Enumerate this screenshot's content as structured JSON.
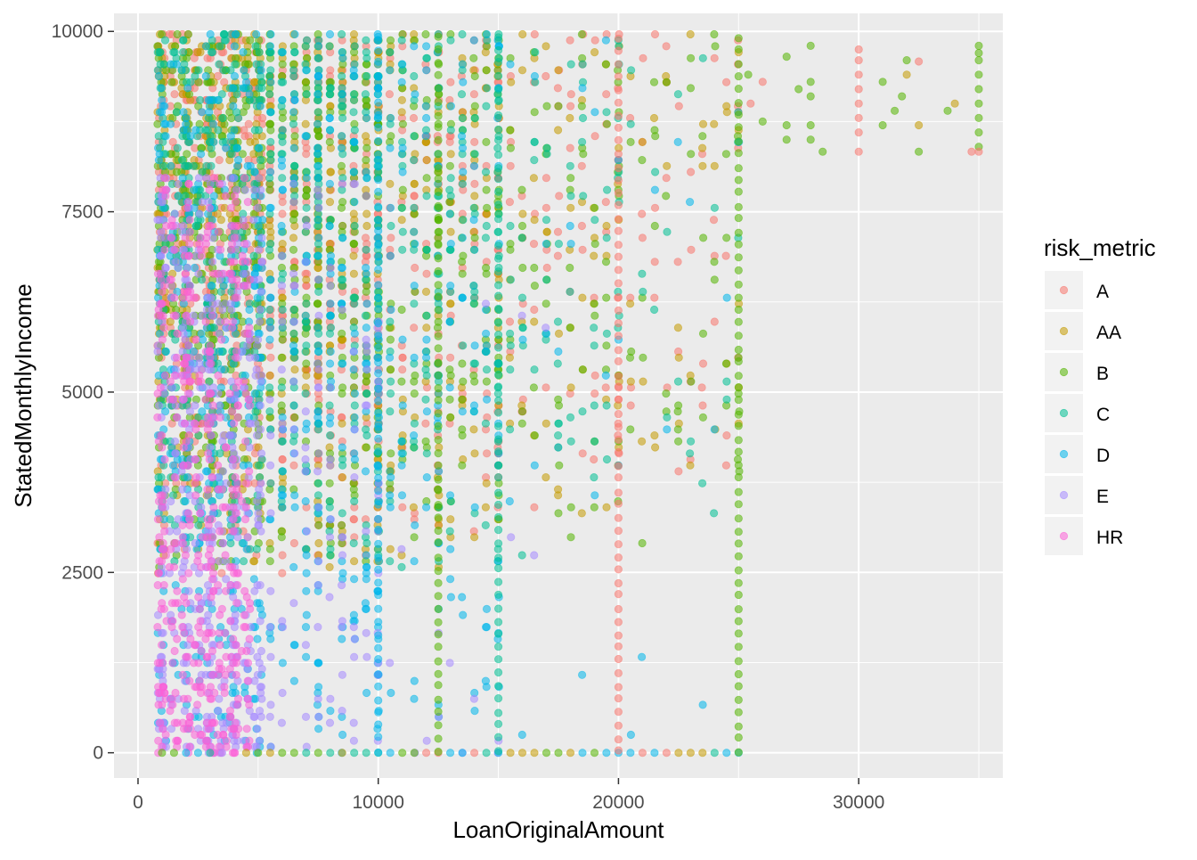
{
  "chart_data": {
    "type": "scatter",
    "title": "",
    "xlabel": "LoanOriginalAmount",
    "ylabel": "StatedMonthlyIncome",
    "xlim": [
      -1000,
      36000
    ],
    "ylim": [
      -350,
      10250
    ],
    "x_ticks": [
      0,
      10000,
      20000,
      30000
    ],
    "x_tick_labels": [
      "0",
      "10000",
      "20000",
      "30000"
    ],
    "y_ticks": [
      0,
      2500,
      5000,
      7500,
      10000
    ],
    "y_tick_labels": [
      "0",
      "2500",
      "5000",
      "7500",
      "10000"
    ],
    "grid": true,
    "legend": {
      "title": "risk_metric",
      "placement": "right",
      "entries": [
        "A",
        "AA",
        "B",
        "C",
        "D",
        "E",
        "HR"
      ]
    },
    "series_colors": {
      "A": "#F8766D",
      "AA": "#C49A00",
      "B": "#53B400",
      "C": "#00C094",
      "D": "#00B6EB",
      "E": "#A58AFF",
      "HR": "#FB61D7"
    },
    "point_alpha": 0.55,
    "panel_background": "#EBEBEB",
    "series": [
      {
        "name": "A",
        "x_range": [
          1000,
          35000
        ],
        "y_range": [
          0,
          10000
        ],
        "sample_points": [
          [
            35000,
            8333
          ],
          [
            32500,
            9583
          ],
          [
            30000,
            9700
          ],
          [
            30000,
            8333
          ],
          [
            26000,
            9300
          ],
          [
            25000,
            0
          ],
          [
            23000,
            9167
          ],
          [
            19000,
            1700
          ],
          [
            16500,
            2000
          ],
          [
            12000,
            1300
          ],
          [
            8000,
            800
          ],
          [
            4000,
            500
          ]
        ]
      },
      {
        "name": "AA",
        "x_range": [
          1000,
          35000
        ],
        "y_range": [
          0,
          10000
        ],
        "sample_points": [
          [
            35000,
            9000
          ],
          [
            32500,
            8700
          ],
          [
            25000,
            9900
          ],
          [
            21000,
            400
          ],
          [
            19500,
            9700
          ],
          [
            15000,
            9600
          ],
          [
            10000,
            9900
          ],
          [
            5000,
            9950
          ],
          [
            2000,
            9850
          ]
        ]
      },
      {
        "name": "B",
        "x_range": [
          1000,
          35000
        ],
        "y_range": [
          0,
          10000
        ],
        "sample_points": [
          [
            35000,
            9800
          ],
          [
            35000,
            8400
          ],
          [
            33000,
            8900
          ],
          [
            28000,
            9800
          ],
          [
            27000,
            8500
          ],
          [
            25000,
            10000
          ],
          [
            23000,
            1300
          ],
          [
            20000,
            600
          ],
          [
            15000,
            9000
          ],
          [
            10000,
            9600
          ]
        ]
      },
      {
        "name": "C",
        "x_range": [
          1000,
          25000
        ],
        "y_range": [
          0,
          10000
        ],
        "sample_points": [
          [
            25000,
            9500
          ],
          [
            23000,
            8700
          ],
          [
            20000,
            7500
          ],
          [
            15000,
            5000
          ],
          [
            10000,
            3500
          ],
          [
            5000,
            6000
          ],
          [
            2000,
            4500
          ]
        ]
      },
      {
        "name": "D",
        "x_range": [
          1000,
          25000
        ],
        "y_range": [
          0,
          10000
        ],
        "sample_points": [
          [
            15000,
            1000
          ],
          [
            10000,
            10000
          ],
          [
            5000,
            4000
          ],
          [
            4000,
            9950
          ],
          [
            2000,
            3000
          ],
          [
            1500,
            7000
          ]
        ]
      },
      {
        "name": "E",
        "x_range": [
          1000,
          17000
        ],
        "y_range": [
          0,
          9000
        ],
        "sample_points": [
          [
            16700,
            1650
          ],
          [
            4000,
            7500
          ],
          [
            3000,
            6000
          ],
          [
            2000,
            5000
          ],
          [
            1500,
            2500
          ]
        ]
      },
      {
        "name": "HR",
        "x_range": [
          1000,
          4500
        ],
        "y_range": [
          0,
          8000
        ],
        "sample_points": [
          [
            4000,
            6000
          ],
          [
            3000,
            3000
          ],
          [
            2000,
            1500
          ],
          [
            1500,
            4500
          ],
          [
            1000,
            500
          ]
        ]
      }
    ]
  }
}
